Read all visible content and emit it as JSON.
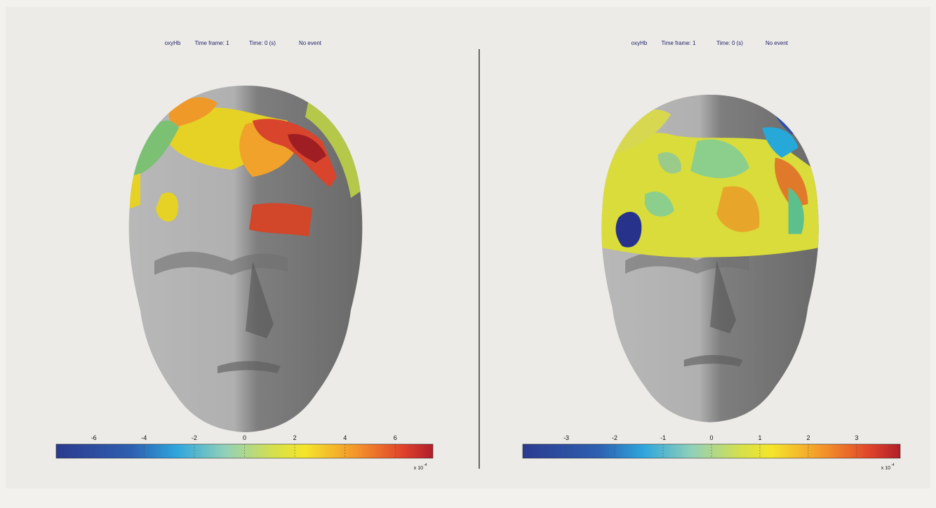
{
  "panels": [
    {
      "header": {
        "signal": "oxyHb",
        "frame": "Time frame: 1",
        "time": "Time: 0 (s)",
        "event": "No event"
      },
      "colorbar": {
        "lim": [
          -7.5,
          7.5
        ],
        "ticks": [
          -6,
          -4,
          -2,
          0,
          2,
          4,
          6
        ],
        "multiplier": "x 10",
        "exponent": "-4"
      }
    },
    {
      "header": {
        "signal": "oxyHb",
        "frame": "Time frame: 1",
        "time": "Time: 0 (s)",
        "event": "No event"
      },
      "colorbar": {
        "lim": [
          -3.9,
          3.9
        ],
        "ticks": [
          -3,
          -2,
          -1,
          0,
          1,
          2,
          3
        ],
        "multiplier": "x 10",
        "exponent": "-4"
      }
    }
  ]
}
